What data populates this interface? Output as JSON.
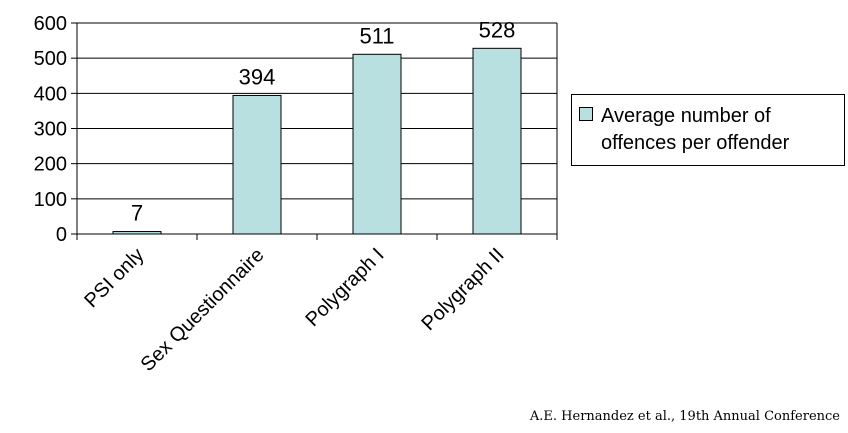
{
  "chart_data": {
    "type": "bar",
    "categories": [
      "PSI only",
      "Sex Questionnaire",
      "Polygraph I",
      "Polygraph II"
    ],
    "series": [
      {
        "name": "Average number of offences per offender",
        "values": [
          7,
          394,
          511,
          528
        ]
      }
    ],
    "data_labels": [
      "7",
      "394",
      "511",
      "528"
    ],
    "ylim": [
      0,
      600
    ],
    "yticks": [
      0,
      100,
      200,
      300,
      400,
      500,
      600
    ],
    "grid": true,
    "legend_position": "right",
    "colors": {
      "bar_fill": "#b8e0e0",
      "bar_stroke": "#000000"
    }
  },
  "legend": {
    "label": "Average number of offences per offender"
  },
  "source": "A.E. Hernandez et al., 19th Annual Conference"
}
